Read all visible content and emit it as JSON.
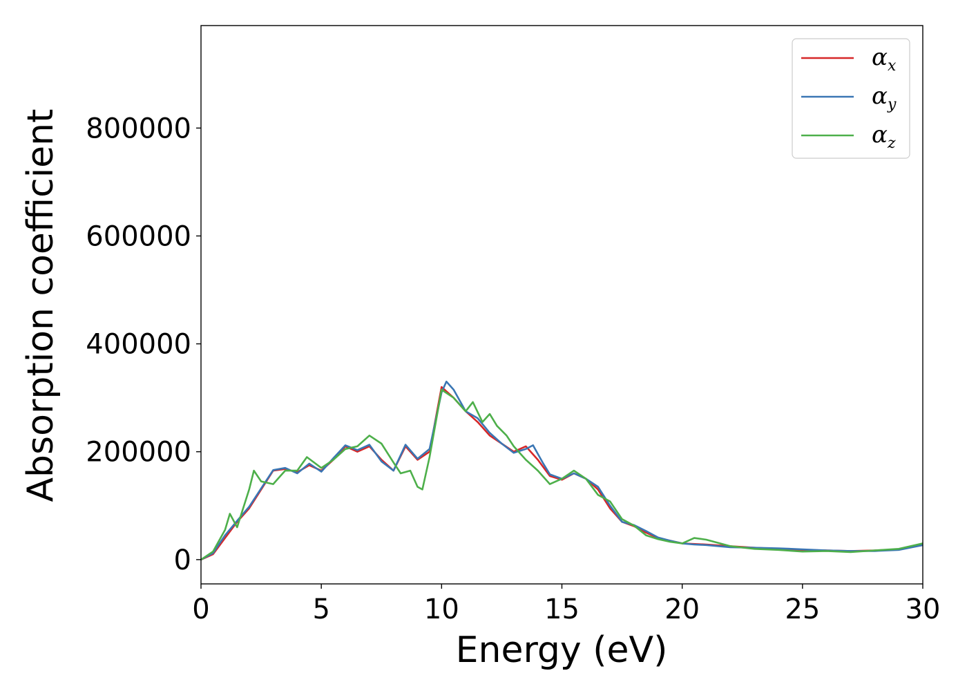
{
  "chart_data": {
    "type": "line",
    "xlabel": "Energy (eV)",
    "ylabel": "Absorption coefficient",
    "xlim": [
      0,
      30
    ],
    "ylim": [
      -45000,
      990000
    ],
    "xticks": [
      0,
      5,
      10,
      15,
      20,
      25,
      30
    ],
    "yticks": [
      0,
      200000,
      400000,
      600000,
      800000
    ],
    "grid": false,
    "legend_position": "top-right",
    "series": [
      {
        "name": "αx",
        "name_main": "α",
        "name_sub": "x",
        "color": "#d62728",
        "x": [
          0,
          0.5,
          1,
          1.5,
          2,
          2.5,
          3,
          3.5,
          4,
          4.5,
          5,
          5.5,
          6,
          6.5,
          7,
          7.5,
          8,
          8.5,
          9,
          9.5,
          10,
          10.5,
          11,
          11.5,
          12,
          12.5,
          13,
          13.5,
          14,
          14.5,
          15,
          15.5,
          16,
          16.5,
          17,
          17.5,
          18,
          18.5,
          19,
          19.5,
          20,
          21,
          22,
          23,
          24,
          25,
          26,
          27,
          28,
          29,
          30
        ],
        "y": [
          0,
          10000,
          40000,
          70000,
          95000,
          130000,
          165000,
          168000,
          162000,
          175000,
          165000,
          185000,
          210000,
          200000,
          210000,
          185000,
          165000,
          210000,
          185000,
          200000,
          320000,
          300000,
          275000,
          255000,
          230000,
          215000,
          200000,
          210000,
          185000,
          155000,
          148000,
          160000,
          150000,
          130000,
          95000,
          70000,
          62000,
          50000,
          40000,
          35000,
          30000,
          28000,
          25000,
          22000,
          20000,
          18000,
          17000,
          16000,
          17000,
          19000,
          27000
        ]
      },
      {
        "name": "αy",
        "name_main": "α",
        "name_sub": "y",
        "color": "#3a76b4",
        "x": [
          0,
          0.5,
          1,
          1.5,
          2,
          2.5,
          3,
          3.5,
          4,
          4.5,
          5,
          5.5,
          6,
          6.5,
          7,
          7.5,
          8,
          8.5,
          9,
          9.5,
          10,
          10.2,
          10.5,
          11,
          11.5,
          12,
          12.5,
          13,
          13.5,
          13.8,
          14.2,
          14.5,
          15,
          15.5,
          16,
          16.5,
          17,
          17.5,
          18,
          18.5,
          19,
          19.5,
          20,
          20.5,
          21,
          22,
          23,
          24,
          25,
          26,
          27,
          28,
          29,
          30
        ],
        "y": [
          0,
          12000,
          45000,
          72000,
          98000,
          132000,
          166000,
          170000,
          160000,
          178000,
          163000,
          188000,
          212000,
          203000,
          213000,
          182000,
          165000,
          213000,
          187000,
          205000,
          310000,
          330000,
          315000,
          275000,
          262000,
          235000,
          215000,
          198000,
          205000,
          212000,
          180000,
          158000,
          150000,
          160000,
          150000,
          135000,
          100000,
          70000,
          64000,
          53000,
          41000,
          35000,
          30000,
          28000,
          27000,
          23000,
          22000,
          21000,
          19000,
          17000,
          16000,
          16000,
          18000,
          27000
        ]
      },
      {
        "name": "αz",
        "name_main": "α",
        "name_sub": "z",
        "color": "#4daf4a",
        "x": [
          0,
          0.5,
          1,
          1.2,
          1.5,
          2,
          2.2,
          2.5,
          3,
          3.3,
          3.5,
          4,
          4.4,
          5,
          5.5,
          6,
          6.5,
          7,
          7.5,
          8,
          8.3,
          8.7,
          9,
          9.2,
          9.5,
          10,
          10.5,
          11,
          11.3,
          11.7,
          12,
          12.3,
          12.7,
          13,
          13.5,
          14,
          14.5,
          15,
          15.5,
          16,
          16.5,
          17,
          17.5,
          18,
          18.5,
          19,
          19.5,
          20,
          20.5,
          21,
          22,
          23,
          24,
          25,
          26,
          27,
          28,
          29,
          30
        ],
        "y": [
          0,
          15000,
          55000,
          85000,
          60000,
          130000,
          165000,
          145000,
          140000,
          155000,
          165000,
          165000,
          190000,
          170000,
          185000,
          205000,
          210000,
          230000,
          215000,
          180000,
          160000,
          165000,
          135000,
          130000,
          190000,
          315000,
          300000,
          275000,
          292000,
          255000,
          270000,
          248000,
          230000,
          210000,
          185000,
          165000,
          140000,
          150000,
          165000,
          150000,
          120000,
          108000,
          75000,
          63000,
          45000,
          38000,
          33000,
          30000,
          40000,
          37000,
          25000,
          20000,
          18000,
          15000,
          16000,
          14000,
          17000,
          20000,
          30000
        ]
      }
    ]
  }
}
